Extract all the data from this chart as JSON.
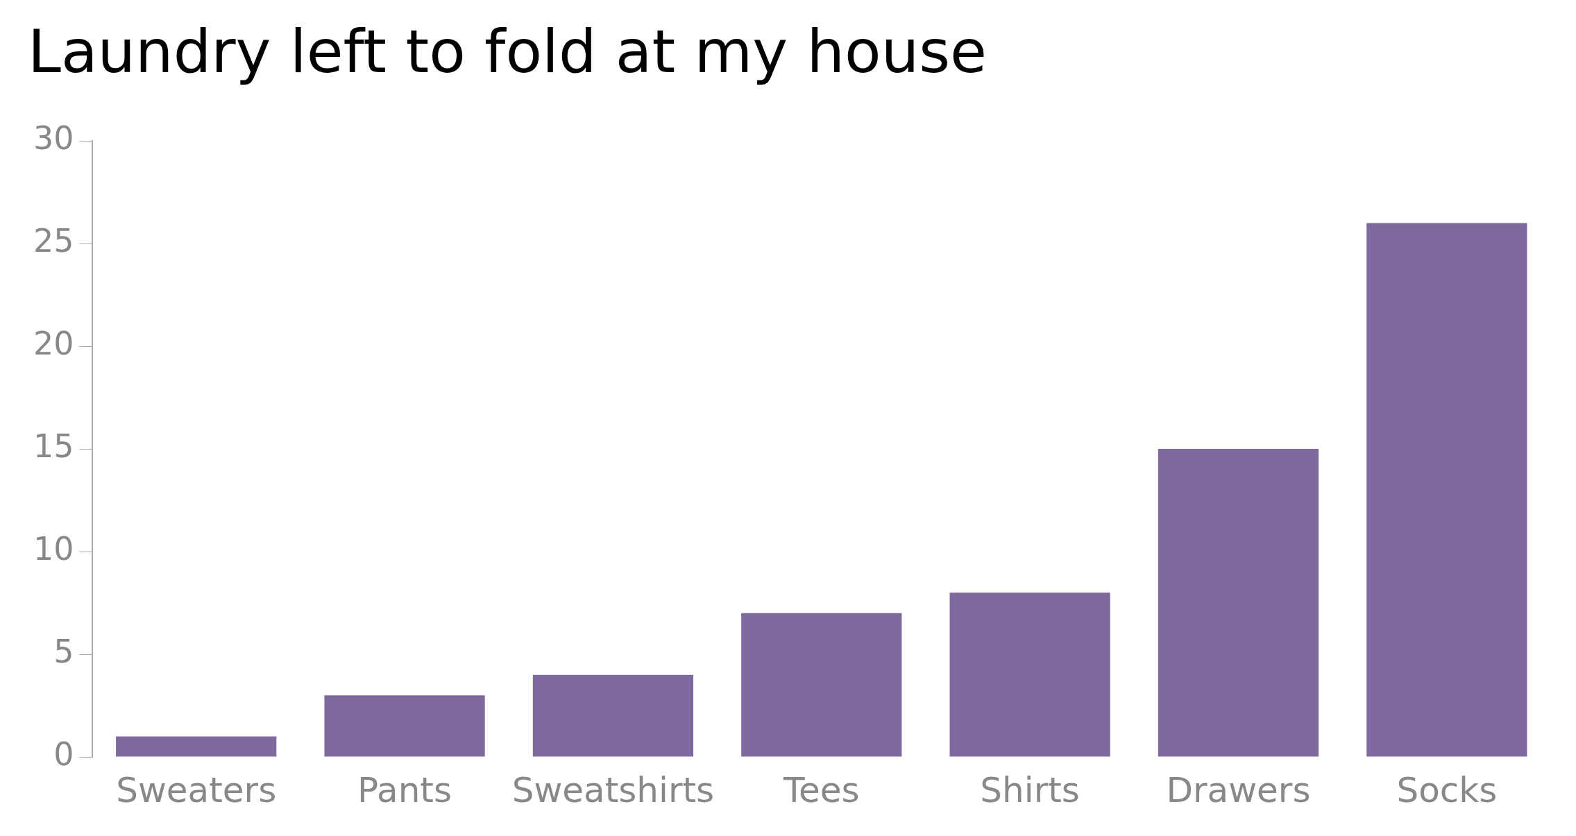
{
  "chart_data": {
    "type": "bar",
    "title": "Laundry left to fold at my house",
    "categories": [
      "Sweaters",
      "Pants",
      "Sweatshirts",
      "Tees",
      "Shirts",
      "Drawers",
      "Socks"
    ],
    "values": [
      1,
      3,
      4,
      7,
      8,
      15,
      26
    ],
    "color": "#7f6a9f",
    "ylim": [
      0,
      30
    ],
    "yticks": [
      0,
      5,
      10,
      15,
      20,
      25,
      30
    ],
    "grid": false,
    "legend": false
  }
}
